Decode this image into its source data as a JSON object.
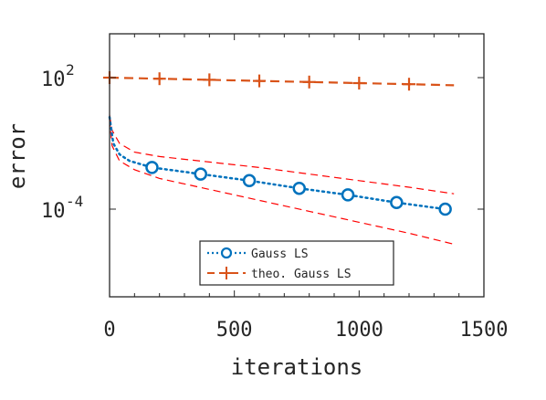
{
  "chart_data": {
    "type": "line",
    "title": "",
    "xlabel": "iterations",
    "ylabel": "error",
    "xlim": [
      0,
      1500
    ],
    "yscale": "log",
    "ylim_log10": [
      -8,
      4
    ],
    "x_ticks": [
      {
        "value": 0,
        "label": "0"
      },
      {
        "value": 500,
        "label": "500"
      },
      {
        "value": 1000,
        "label": "1000"
      },
      {
        "value": 1500,
        "label": "1500"
      }
    ],
    "y_ticks": [
      {
        "exp": 2,
        "base": "10",
        "sup": "2"
      },
      {
        "exp": -4,
        "base": "10",
        "sup": "-4"
      }
    ],
    "grid": false,
    "legend_position": "bottom-center",
    "series": [
      {
        "name": "Gauss LS",
        "color": "#0072BD",
        "line_style": "dotted",
        "marker": "circle",
        "x": [
          0,
          15,
          40,
          80,
          170,
          365,
          560,
          760,
          955,
          1150,
          1345
        ],
        "log10_y": [
          0.2,
          -1.0,
          -1.5,
          -1.8,
          -2.1,
          -2.4,
          -2.7,
          -3.05,
          -3.35,
          -3.7,
          -4.0
        ],
        "marker_x": [
          170,
          365,
          560,
          760,
          955,
          1150,
          1345
        ],
        "marker_log10_y": [
          -2.1,
          -2.4,
          -2.7,
          -3.05,
          -3.35,
          -3.7,
          -4.0
        ]
      },
      {
        "name": "theo. Gauss LS",
        "color": "#D95319",
        "line_style": "dashed",
        "marker": "plus",
        "x": [
          0,
          200,
          400,
          600,
          800,
          1000,
          1200,
          1380
        ],
        "log10_y": [
          2.0,
          1.95,
          1.9,
          1.85,
          1.8,
          1.75,
          1.7,
          1.65
        ],
        "marker_x": [
          0,
          200,
          400,
          600,
          800,
          1000,
          1200
        ],
        "marker_log10_y": [
          2.0,
          1.95,
          1.9,
          1.85,
          1.8,
          1.75,
          1.7
        ]
      }
    ],
    "bands": [
      {
        "color": "#FF0000",
        "line_style": "dashed",
        "x": [
          0,
          10,
          40,
          100,
          200,
          400,
          600,
          800,
          1000,
          1200,
          1380
        ],
        "log10_y": [
          0.3,
          -0.4,
          -1.0,
          -1.4,
          -1.6,
          -1.85,
          -2.1,
          -2.4,
          -2.7,
          -3.0,
          -3.3
        ]
      },
      {
        "color": "#FF0000",
        "line_style": "dashed",
        "x": [
          0,
          10,
          40,
          100,
          200,
          400,
          600,
          800,
          1000,
          1200,
          1380
        ],
        "log10_y": [
          0.1,
          -1.1,
          -1.8,
          -2.2,
          -2.6,
          -3.1,
          -3.6,
          -4.1,
          -4.6,
          -5.1,
          -5.6
        ]
      }
    ]
  }
}
